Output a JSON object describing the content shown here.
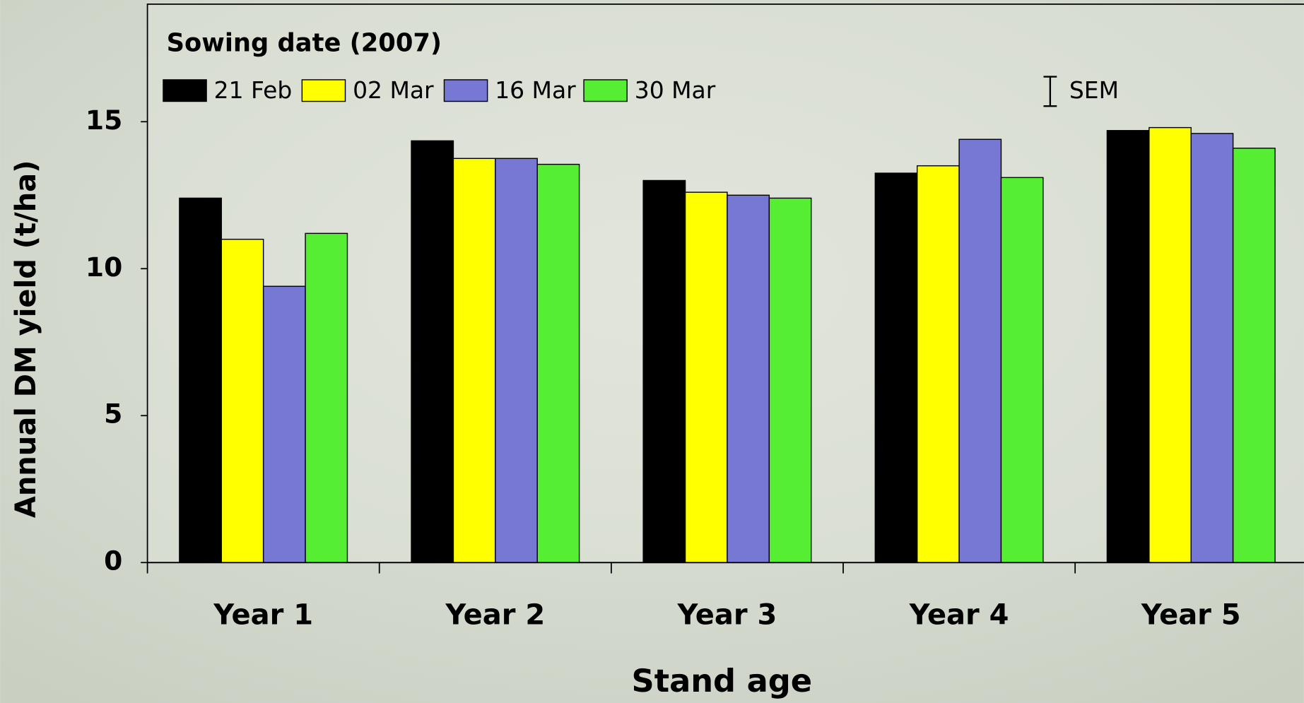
{
  "chart_data": {
    "type": "bar",
    "title": "Sowing date (2007)",
    "x_label": "Stand age",
    "y_label": "Annual DM yield (t/ha)",
    "categories": [
      "Year 1",
      "Year 2",
      "Year 3",
      "Year 4",
      "Year 5"
    ],
    "series": [
      {
        "name": "21 Feb",
        "color": "#000000",
        "values": [
          12.4,
          14.35,
          13.0,
          13.25,
          14.7
        ]
      },
      {
        "name": "02 Mar",
        "color": "#ffff00",
        "values": [
          11.0,
          13.75,
          12.6,
          13.5,
          14.8
        ]
      },
      {
        "name": "16 Mar",
        "color": "#7777d4",
        "values": [
          9.4,
          13.75,
          12.5,
          14.4,
          14.6
        ]
      },
      {
        "name": "30 Mar",
        "color": "#55ee33",
        "values": [
          11.2,
          13.55,
          12.4,
          13.1,
          14.1
        ]
      }
    ],
    "sem": {
      "label": "SEM",
      "value": 1.0
    },
    "ylim": [
      0,
      19
    ],
    "yticks": [
      0,
      5,
      10,
      15
    ],
    "grid": false
  }
}
